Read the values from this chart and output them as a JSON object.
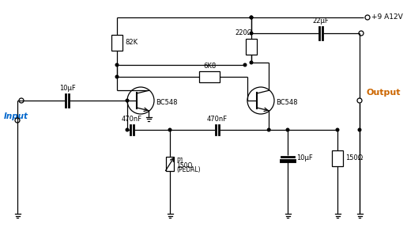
{
  "background_color": "#ffffff",
  "line_color": "#000000",
  "input_label_color": "#0066cc",
  "output_label_color": "#cc6600",
  "supply_label": "+9 A12V",
  "input_label": "Input",
  "output_label": "Output",
  "R1_label": "82K",
  "R2_label": "220Ω",
  "R3_label": "6K8",
  "R4_label": "150Ω",
  "C1_label": "10μF",
  "C2_label": "470nF",
  "C3_label": "470nF",
  "C4_label": "22μF",
  "C5_label": "10μF",
  "P1_label1": "P1",
  "P1_label2": "150Ω",
  "P1_label3": "(PEDAL)",
  "Q1_label": "BC548",
  "Q2_label": "BC548"
}
